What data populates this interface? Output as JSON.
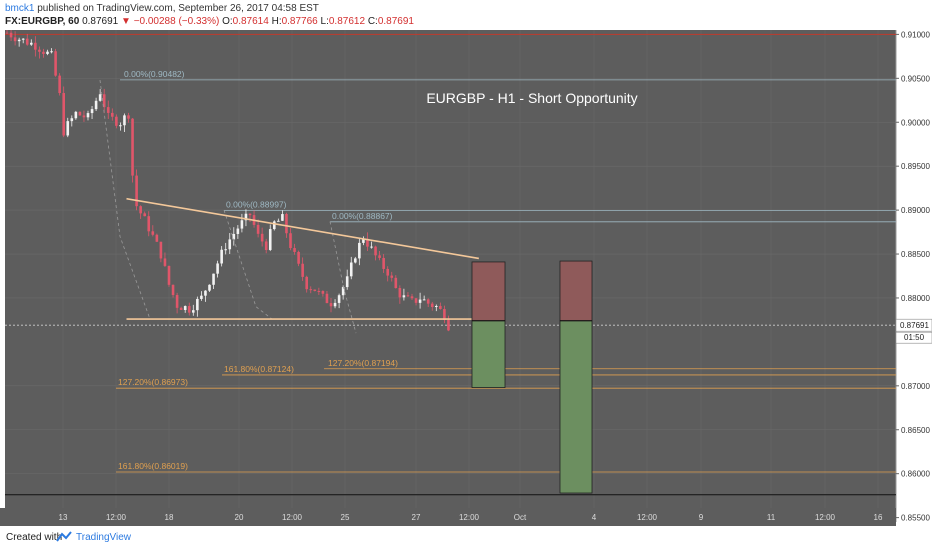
{
  "header": {
    "author": "bmck1",
    "published_text": "published on TradingView.com, September 26, 2017 04:58 EST",
    "symbol": "FX:EURGBP, 60",
    "last": "0.87691",
    "change": "▼ −0.00288 (−0.33%)",
    "ohlc": {
      "o_label": "O:",
      "o": "0.87614",
      "h_label": "H:",
      "h": "0.87766",
      "l_label": "L:",
      "l": "0.87612",
      "c_label": "C:",
      "c": "0.87691"
    }
  },
  "footer": {
    "created_with": "Created with",
    "brand": "TradingView"
  },
  "colors": {
    "background": "#5d5d5d",
    "axis_bg": "#ffffff",
    "grid": "#6a6a6a",
    "up_candle": "#f2f2f2",
    "down_candle": "#e0566a",
    "trendline": "#f4c89a",
    "fib_text": "#9fb9c4",
    "fib_orange": "#e0a050",
    "red_line": "#c0392b",
    "loss_box": "#8f5a5a",
    "profit_box": "#6c8f60",
    "annotation": "#ffffff"
  },
  "chart_data": {
    "type": "candlestick",
    "title": "EURGBP - H1 - Short Opportunity",
    "y_axis": {
      "range": [
        0.8545,
        0.9105
      ],
      "ticks": [
        "0.91000",
        "0.90500",
        "0.90000",
        "0.89500",
        "0.89000",
        "0.88500",
        "0.88000",
        "0.87000",
        "0.86500",
        "0.86000",
        "0.85500"
      ],
      "last_price_label": "0.87691",
      "countdown_label": "01:50"
    },
    "x_axis": {
      "ticks": [
        "13",
        "12:00",
        "18",
        "20",
        "12:00",
        "25",
        "27",
        "12:00",
        "Oct",
        "4",
        "12:00",
        "9",
        "11",
        "12:00",
        "16"
      ]
    },
    "price_path": [
      [
        0,
        0.9102
      ],
      [
        3,
        0.9095
      ],
      [
        7,
        0.9088
      ],
      [
        11,
        0.9075
      ],
      [
        13,
        0.903
      ],
      [
        14,
        0.899
      ],
      [
        17,
        0.901
      ],
      [
        20,
        0.9005
      ],
      [
        23,
        0.9035
      ],
      [
        25,
        0.9005
      ],
      [
        28,
        0.9
      ],
      [
        30,
        0.901
      ],
      [
        31,
        0.894
      ],
      [
        32,
        0.8905
      ],
      [
        35,
        0.888
      ],
      [
        38,
        0.885
      ],
      [
        40,
        0.8815
      ],
      [
        42,
        0.8792
      ],
      [
        45,
        0.8788
      ],
      [
        48,
        0.88
      ],
      [
        51,
        0.883
      ],
      [
        54,
        0.886
      ],
      [
        57,
        0.888
      ],
      [
        60,
        0.8895
      ],
      [
        62,
        0.887
      ],
      [
        64,
        0.886
      ],
      [
        66,
        0.8885
      ],
      [
        68,
        0.889
      ],
      [
        70,
        0.886
      ],
      [
        72,
        0.8835
      ],
      [
        74,
        0.8815
      ],
      [
        76,
        0.881
      ],
      [
        78,
        0.88
      ],
      [
        80,
        0.8795
      ],
      [
        82,
        0.8805
      ],
      [
        84,
        0.882
      ],
      [
        86,
        0.885
      ],
      [
        88,
        0.887
      ],
      [
        90,
        0.8855
      ],
      [
        92,
        0.884
      ],
      [
        94,
        0.883
      ],
      [
        96,
        0.881
      ],
      [
        98,
        0.88
      ],
      [
        100,
        0.8795
      ],
      [
        102,
        0.88
      ],
      [
        104,
        0.8794
      ],
      [
        106,
        0.879
      ],
      [
        108,
        0.8781
      ],
      [
        109,
        0.8769
      ]
    ],
    "fib_levels": [
      {
        "label": "0.00%(0.90482)",
        "price": 0.90482,
        "style": "blue"
      },
      {
        "label": "0.00%(0.88997)",
        "price": 0.88997,
        "style": "blue"
      },
      {
        "label": "0.00%(0.88867)",
        "price": 0.88867,
        "style": "blue"
      },
      {
        "label": "127.20%(0.87194)",
        "price": 0.87194,
        "style": "orange"
      },
      {
        "label": "161.80%(0.87124)",
        "price": 0.87124,
        "style": "orange"
      },
      {
        "label": "127.20%(0.86973)",
        "price": 0.86973,
        "style": "orange"
      },
      {
        "label": "161.80%(0.86019)",
        "price": 0.86019,
        "style": "orange"
      }
    ],
    "horizontal_lines": [
      {
        "name": "top-red-line",
        "price": 0.91
      },
      {
        "name": "bottom-black-line",
        "price": 0.8576
      },
      {
        "name": "current-price-line",
        "price": 0.8769
      }
    ],
    "trendlines": [
      {
        "name": "descending-resistance",
        "from": [
          30,
          0.8913
        ],
        "to": [
          117,
          0.8845
        ]
      },
      {
        "name": "horizontal-support",
        "from": [
          30,
          0.8776
        ],
        "to": [
          119,
          0.8776
        ]
      }
    ],
    "positions": [
      {
        "name": "short-position-1",
        "entry": 0.8774,
        "stop": 0.8841,
        "target": 0.8698
      },
      {
        "name": "short-position-2",
        "entry": 0.8774,
        "stop": 0.8842,
        "target": 0.8578
      }
    ]
  }
}
